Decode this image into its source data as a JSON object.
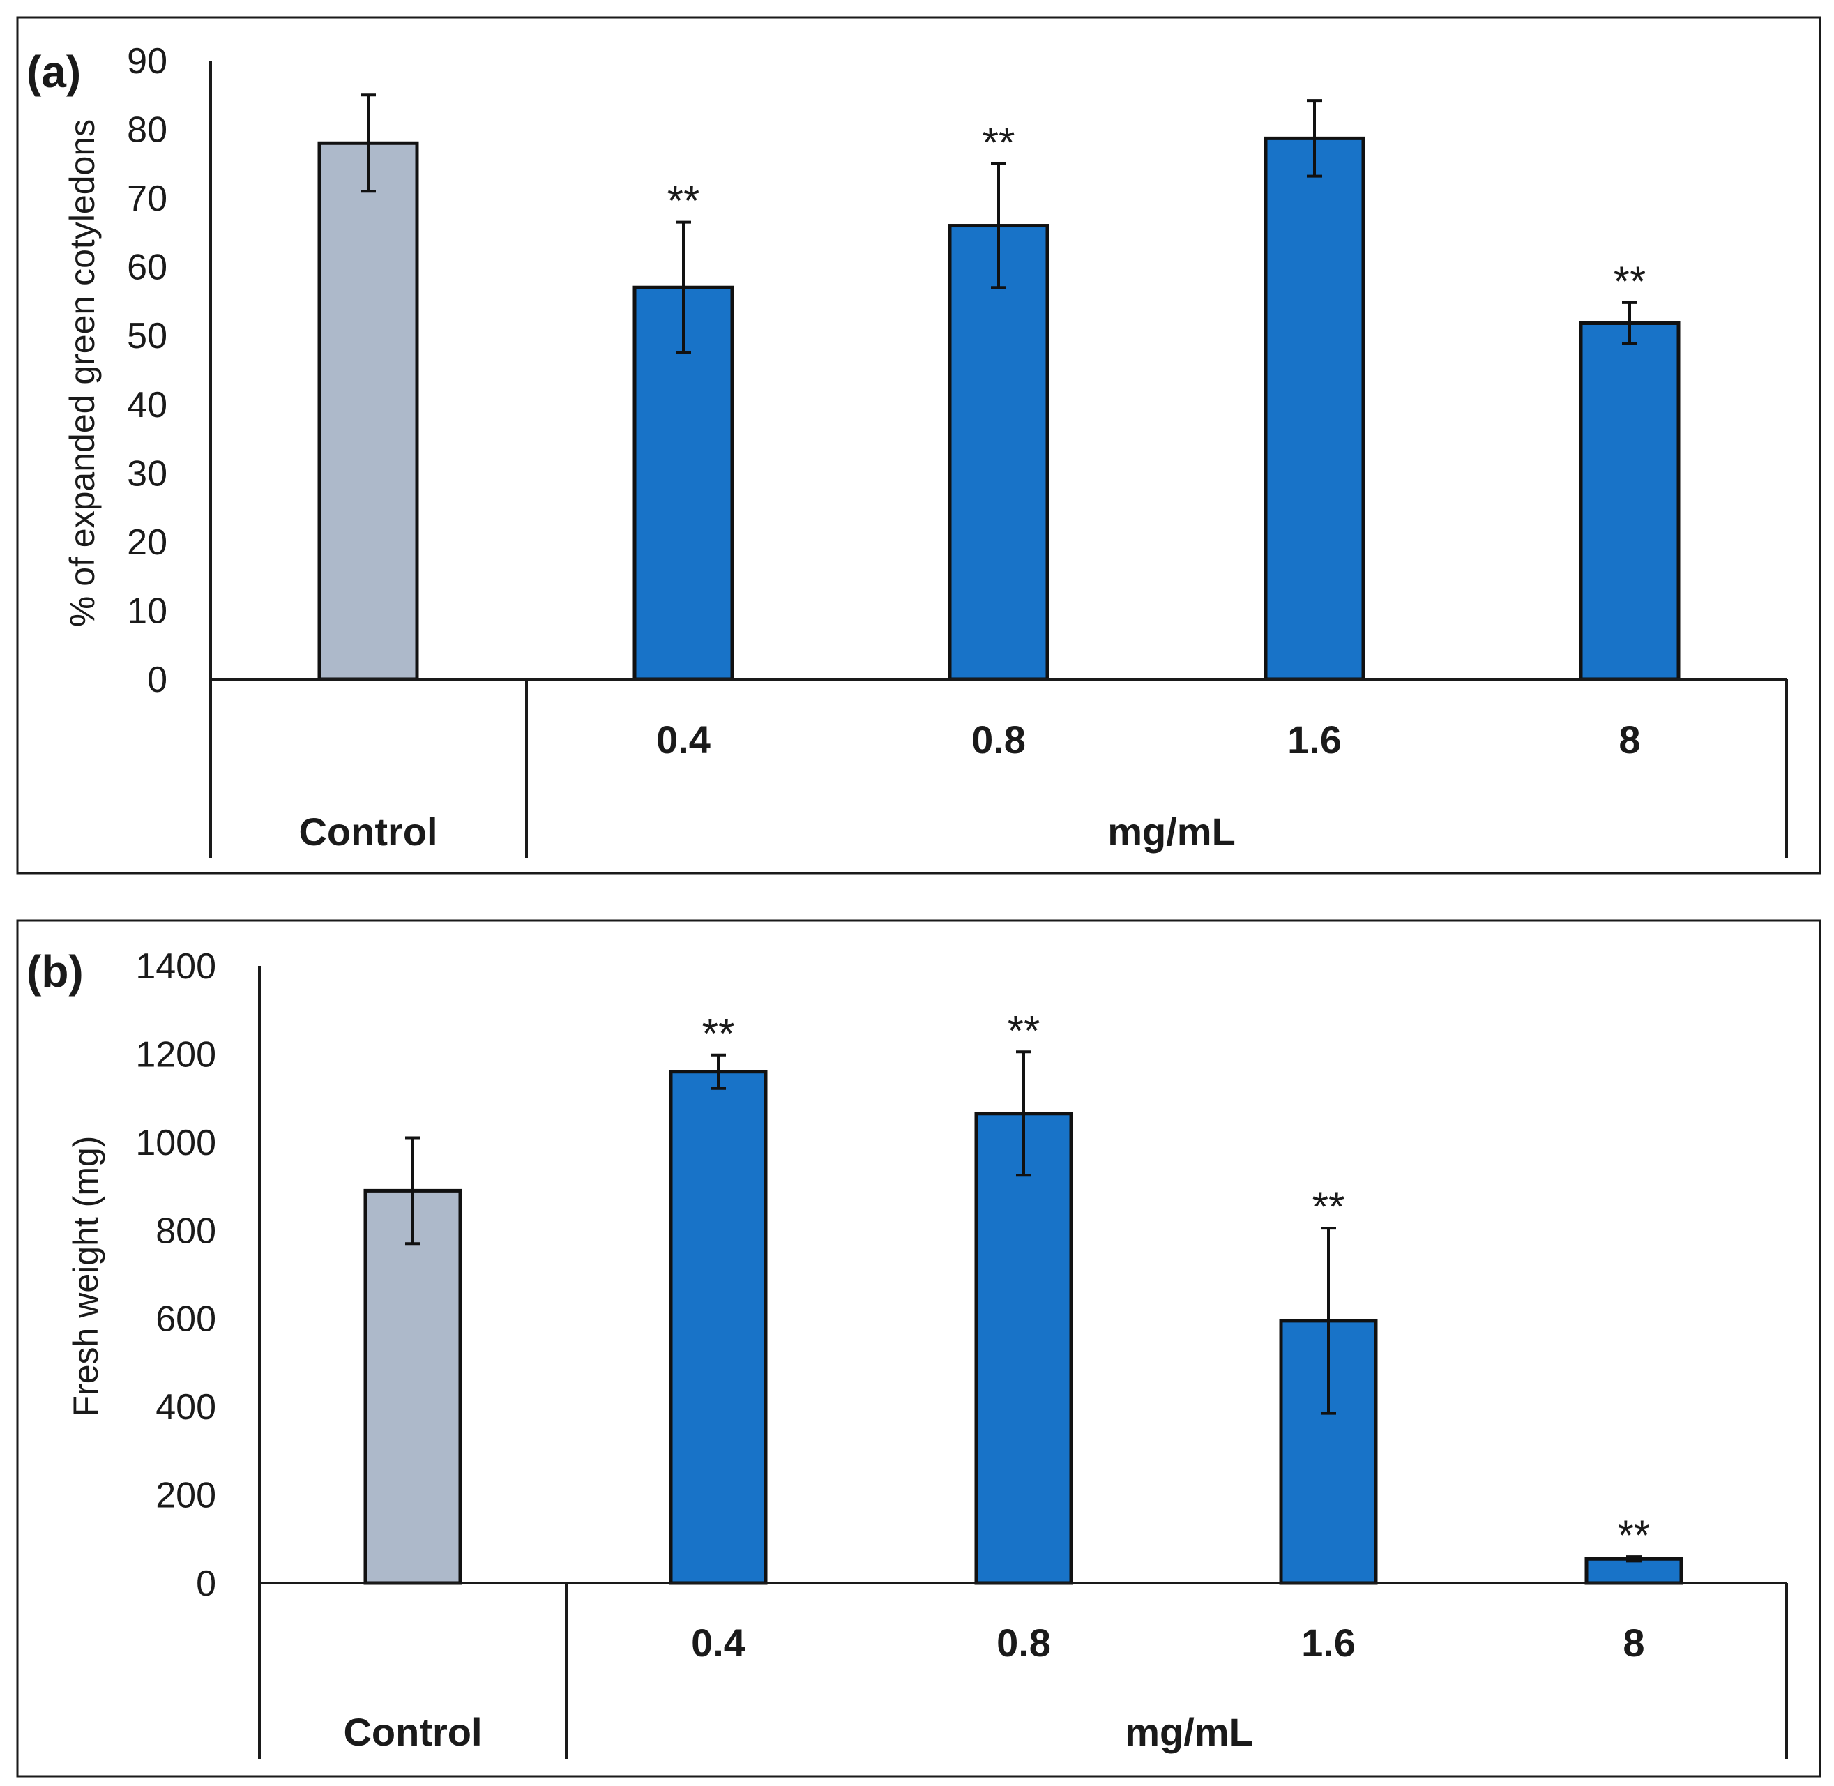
{
  "colors": {
    "control": "#adb9ca",
    "treatment": "#1873c8",
    "axis": "#1a1a1a"
  },
  "chart_data": [
    {
      "type": "bar",
      "panel_label": "(a)",
      "categories": [
        "Control",
        "0.4",
        "0.8",
        "1.6",
        "8"
      ],
      "values": [
        78,
        57,
        66,
        78.7,
        51.8
      ],
      "errors": [
        7,
        9.5,
        9,
        5.5,
        3
      ],
      "significance": [
        "",
        "**",
        "**",
        "",
        "**"
      ],
      "group_labels": {
        "control": "Control",
        "treatment": "mg/mL"
      },
      "ylabel": "% of expanded green cotyledons",
      "ylim": [
        0,
        90
      ],
      "yticks": [
        0,
        10,
        20,
        30,
        40,
        50,
        60,
        70,
        80,
        90
      ],
      "grid": false
    },
    {
      "type": "bar",
      "panel_label": "(b)",
      "categories": [
        "Control",
        "0.4",
        "0.8",
        "1.6",
        "8"
      ],
      "values": [
        890,
        1160,
        1065,
        595,
        55
      ],
      "errors": [
        120,
        38,
        140,
        210,
        5
      ],
      "significance": [
        "",
        "**",
        "**",
        "**",
        "**"
      ],
      "group_labels": {
        "control": "Control",
        "treatment": "mg/mL"
      },
      "ylabel": "Fresh weight (mg)",
      "ylim": [
        0,
        1400
      ],
      "yticks": [
        0,
        200,
        400,
        600,
        800,
        1000,
        1200,
        1400
      ],
      "grid": false
    }
  ]
}
